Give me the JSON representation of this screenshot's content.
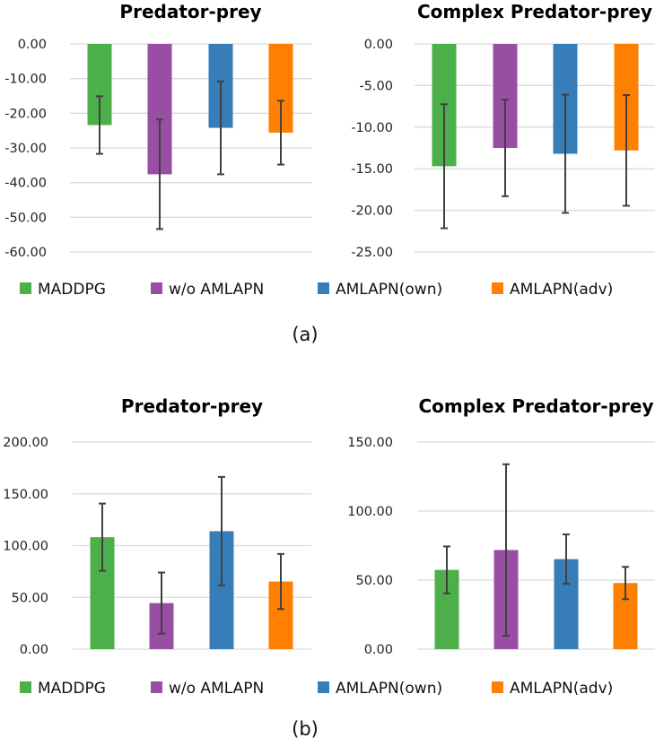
{
  "colors": {
    "MADDPG": "#4daf4a",
    "w/o AMLAPN": "#984ea3",
    "AMLAPN(own)": "#377eb8",
    "AMLAPN(adv)": "#ff7f00",
    "grid": "#d9d9d9",
    "error": "#404040"
  },
  "legend": [
    "MADDPG",
    "w/o AMLAPN",
    "AMLAPN(own)",
    "AMLAPN(adv)"
  ],
  "panel_labels": [
    "(a)",
    "(b)"
  ],
  "chart_data": [
    {
      "type": "bar",
      "panel": "(a)",
      "title": "Predator-prey",
      "categories": [
        "MADDPG",
        "w/o AMLAPN",
        "AMLAPN(own)",
        "AMLAPN(adv)"
      ],
      "values": [
        -23.4,
        -37.6,
        -24.2,
        -25.6
      ],
      "errors": [
        8.3,
        15.8,
        13.4,
        9.2
      ],
      "ylim": [
        -60,
        0
      ],
      "yticks": [
        0,
        -10,
        -20,
        -30,
        -40,
        -50,
        -60
      ],
      "ytick_labels": [
        "0.00",
        "-10.00",
        "-20.00",
        "-30.00",
        "-40.00",
        "-50.00",
        "-60.00"
      ],
      "grid": true,
      "legend": "bottom"
    },
    {
      "type": "bar",
      "panel": "(a)",
      "title": "Complex Predator-prey",
      "categories": [
        "MADDPG",
        "w/o AMLAPN",
        "AMLAPN(own)",
        "AMLAPN(adv)"
      ],
      "values": [
        -14.7,
        -12.5,
        -13.2,
        -12.8
      ],
      "errors": [
        7.45,
        5.8,
        7.1,
        6.65
      ],
      "ylim": [
        -25,
        0
      ],
      "yticks": [
        0,
        -5,
        -10,
        -15,
        -20,
        -25
      ],
      "ytick_labels": [
        "0.00",
        "-5.00",
        "-10.00",
        "-15.00",
        "-20.00",
        "-25.00"
      ],
      "grid": true,
      "legend": "bottom"
    },
    {
      "type": "bar",
      "panel": "(b)",
      "title": "Predator-prey",
      "categories": [
        "MADDPG",
        "w/o AMLAPN",
        "AMLAPN(own)",
        "AMLAPN(adv)"
      ],
      "values": [
        108.1,
        44.5,
        113.9,
        65.3
      ],
      "errors": [
        32.5,
        29.5,
        52.4,
        26.6
      ],
      "ylim": [
        0,
        200
      ],
      "yticks": [
        200,
        150,
        100,
        50,
        0
      ],
      "ytick_labels": [
        "200.00",
        "150.00",
        "100.00",
        "50.00",
        "0.00"
      ],
      "grid": true,
      "legend": "bottom"
    },
    {
      "type": "bar",
      "panel": "(b)",
      "title": "Complex Predator-prey",
      "categories": [
        "MADDPG",
        "w/o AMLAPN",
        "AMLAPN(own)",
        "AMLAPN(adv)"
      ],
      "values": [
        57.4,
        71.8,
        65.2,
        47.9
      ],
      "errors": [
        17.0,
        62.1,
        17.9,
        11.7
      ],
      "ylim": [
        0,
        150
      ],
      "yticks": [
        150,
        100,
        50,
        0
      ],
      "ytick_labels": [
        "150.00",
        "100.00",
        "50.00",
        "0.00"
      ],
      "grid": true,
      "legend": "bottom"
    }
  ]
}
